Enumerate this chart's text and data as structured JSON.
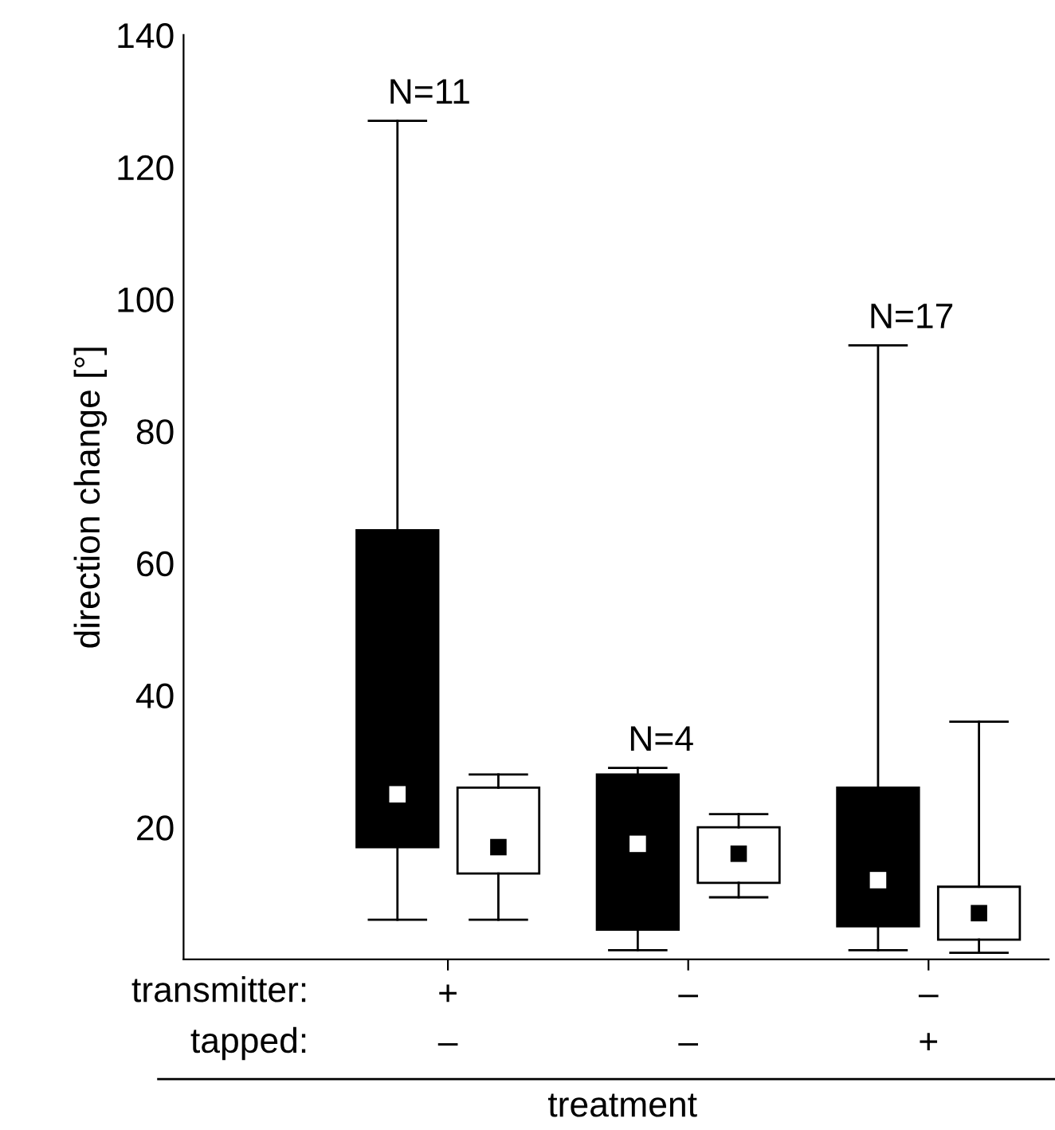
{
  "chart_data": {
    "type": "box",
    "ylabel": "direction change [°]",
    "xlabel": "treatment",
    "categories": [
      "+\n–",
      "–\n–",
      "–\n+"
    ],
    "series": [
      {
        "color": "#000000",
        "boxes": [
          {
            "low": 6,
            "q1": 17,
            "median": 25,
            "q3": 65,
            "high": 127
          },
          {
            "low": 1.4,
            "q1": 4.5,
            "median": 17.5,
            "q3": 28,
            "high": 29
          },
          {
            "low": 1.4,
            "q1": 5,
            "median": 12,
            "q3": 26,
            "high": 93
          }
        ]
      },
      {
        "color": "#ffffff",
        "boxes": [
          {
            "low": 6,
            "q1": 13,
            "median": 17,
            "q3": 26,
            "high": 28
          },
          {
            "low": 9.4,
            "q1": 11.6,
            "median": 16,
            "q3": 20,
            "high": 22
          },
          {
            "low": 1,
            "q1": 3,
            "median": 7,
            "q3": 11,
            "high": 36
          }
        ]
      }
    ],
    "ylim": [
      0,
      140
    ],
    "yticks": [
      20,
      40,
      60,
      80,
      100,
      120,
      140
    ],
    "grid": false,
    "marker": "square",
    "annotations": [
      "N=11",
      "N=4",
      "N=17",
      "transmitter:",
      "tapped:"
    ]
  }
}
